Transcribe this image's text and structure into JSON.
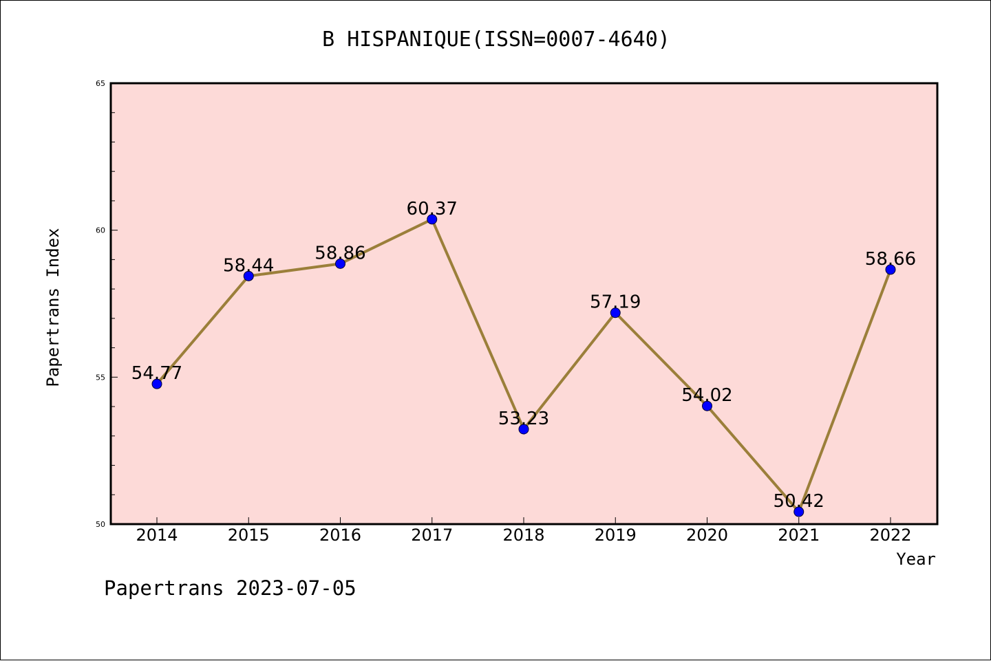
{
  "chart_data": {
    "type": "line",
    "title": "B HISPANIQUE(ISSN=0007-4640)",
    "xlabel": "Year",
    "ylabel": "Papertrans Index",
    "categories": [
      "2014",
      "2015",
      "2016",
      "2017",
      "2018",
      "2019",
      "2020",
      "2021",
      "2022"
    ],
    "series": [
      {
        "values": [
          54.77,
          58.44,
          58.86,
          60.37,
          53.23,
          57.19,
          54.02,
          50.42,
          58.66
        ],
        "labels": [
          "54.77",
          "58.44",
          "58.86",
          "60.37",
          "53.23",
          "57.19",
          "54.02",
          "50.42",
          "58.66"
        ]
      }
    ],
    "ylim": [
      50,
      65
    ],
    "yticks": [
      "50",
      "55",
      "60",
      "65"
    ],
    "grid": false,
    "legend": "none",
    "colors": {
      "plot_background": "#fddad8",
      "line": "#9b7f3a",
      "marker": "#0000ff"
    }
  },
  "footer": "Papertrans 2023-07-05"
}
